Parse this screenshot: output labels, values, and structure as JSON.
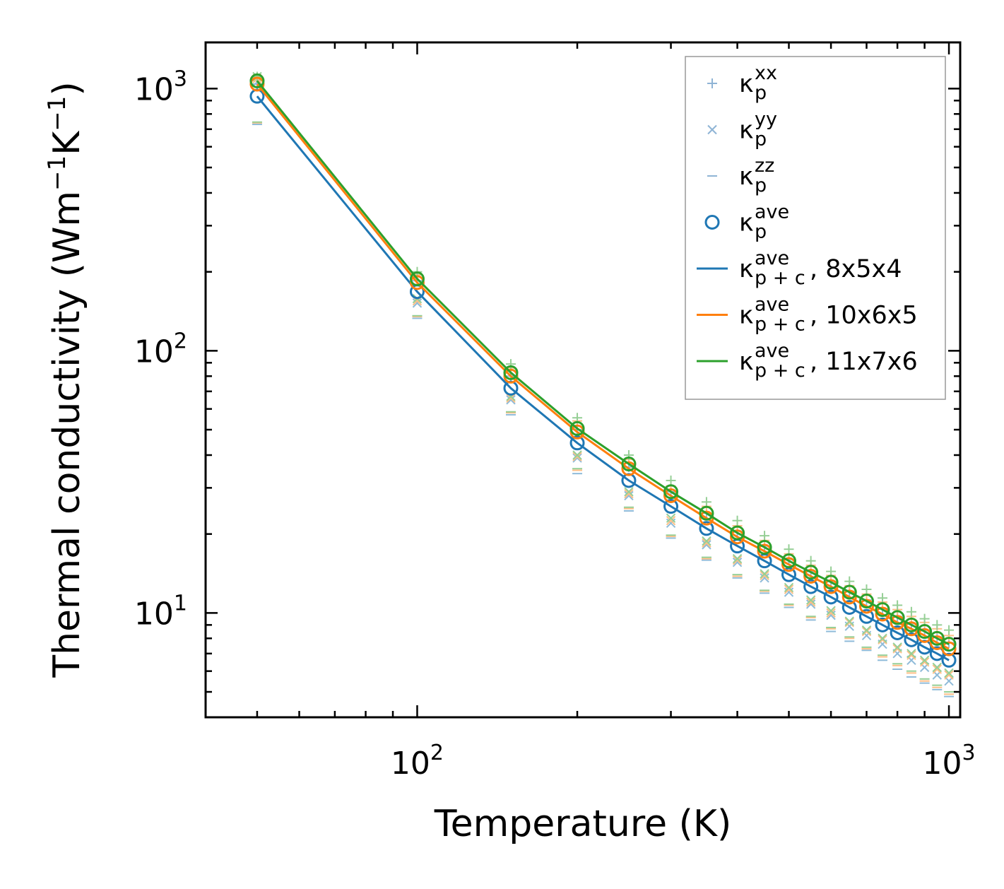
{
  "chart_data": {
    "type": "line",
    "scale": {
      "x": "log",
      "y": "log"
    },
    "xlim": [
      40,
      1050
    ],
    "ylim": [
      4,
      1500
    ],
    "xlabel": "Temperature (K)",
    "ylabel_text": "Thermal conductivity (Wm",
    "ylabel_exp1": "−1",
    "ylabel_mid": "K",
    "ylabel_exp2": "−1",
    "ylabel_close": ")",
    "x_ticks": [
      {
        "value": 100,
        "base": "10",
        "exp": "2"
      },
      {
        "value": 1000,
        "base": "10",
        "exp": "3"
      }
    ],
    "y_ticks": [
      {
        "value": 10,
        "base": "10",
        "exp": "1"
      },
      {
        "value": 100,
        "base": "10",
        "exp": "2"
      },
      {
        "value": 1000,
        "base": "10",
        "exp": "3"
      }
    ],
    "x": [
      50,
      100,
      150,
      200,
      250,
      300,
      350,
      400,
      450,
      500,
      550,
      600,
      650,
      700,
      750,
      800,
      850,
      900,
      950,
      1000
    ],
    "legend": [
      {
        "kind": "plus",
        "name": "κ",
        "sub": "p",
        "sup": "xx",
        "color": "#8fb4d5"
      },
      {
        "kind": "cross",
        "name": "κ",
        "sub": "p",
        "sup": "yy",
        "color": "#8fb4d5"
      },
      {
        "kind": "dash",
        "name": "κ",
        "sub": "p",
        "sup": "zz",
        "color": "#8fb4d5"
      },
      {
        "kind": "circle",
        "name": "κ",
        "sub": "p",
        "sup": "ave",
        "color": "#1f77b4"
      },
      {
        "kind": "line",
        "name": "κ",
        "sub": "p + c",
        "sup": "ave",
        "suffix": ", 8x5x4",
        "color": "#1f77b4"
      },
      {
        "kind": "line",
        "name": "κ",
        "sub": "p + c",
        "sup": "ave",
        "suffix": ", 10x6x5",
        "color": "#ff7f0e"
      },
      {
        "kind": "line",
        "name": "κ",
        "sub": "p + c",
        "sup": "ave",
        "suffix": ", 11x7x6",
        "color": "#2ca02c"
      }
    ],
    "series": [
      {
        "name": "κp+c ave, 8x5x4",
        "color": "#1f77b4",
        "light_color": "#8fbbd9",
        "line": [
          935,
          168,
          72,
          44.5,
          32,
          25.5,
          21,
          18,
          15.8,
          14,
          12.6,
          11.5,
          10.5,
          9.7,
          9.0,
          8.4,
          7.9,
          7.4,
          7.0,
          6.6
        ],
        "ave": [
          935,
          168,
          72,
          44.5,
          32,
          25.5,
          21,
          18,
          15.8,
          14,
          12.6,
          11.5,
          10.5,
          9.7,
          9.0,
          8.4,
          7.9,
          7.4,
          7.0,
          6.6
        ],
        "xx": [
          1040,
          185,
          80,
          50,
          36,
          29,
          24,
          20.5,
          18,
          16,
          14.4,
          13.2,
          12.1,
          11.2,
          10.4,
          9.7,
          9.1,
          8.6,
          8.1,
          7.7
        ],
        "yy": [
          1060,
          152,
          65,
          39,
          28,
          22,
          18.2,
          15.6,
          13.6,
          12,
          10.8,
          9.8,
          8.9,
          8.2,
          7.6,
          7.0,
          6.6,
          6.2,
          5.8,
          5.5
        ],
        "zz": [
          730,
          133,
          57,
          34,
          24.5,
          19.3,
          15.9,
          13.6,
          11.9,
          10.5,
          9.4,
          8.5,
          7.8,
          7.2,
          6.6,
          6.1,
          5.7,
          5.4,
          5.1,
          4.8
        ]
      },
      {
        "name": "κp+c ave, 10x6x5",
        "color": "#ff7f0e",
        "light_color": "#ffbf86",
        "line": [
          1040,
          182,
          80,
          49,
          35.5,
          28,
          23,
          19.5,
          17.2,
          15.3,
          13.8,
          12.6,
          11.5,
          10.6,
          9.9,
          9.2,
          8.7,
          8.2,
          7.7,
          7.3
        ],
        "ave": [
          1040,
          182,
          80,
          49,
          35.5,
          28,
          23,
          19.5,
          17.2,
          15.3,
          13.8,
          12.6,
          11.5,
          10.6,
          9.9,
          9.2,
          8.7,
          8.2,
          7.7,
          7.3
        ],
        "xx": [
          1100,
          195,
          86,
          54,
          38.5,
          30.5,
          25.5,
          21.5,
          18.9,
          16.8,
          15.2,
          13.9,
          12.7,
          11.8,
          11.0,
          10.3,
          9.7,
          9.2,
          8.7,
          8.2
        ],
        "yy": [
          1090,
          155,
          66,
          39.5,
          28.5,
          22.5,
          18.5,
          15.9,
          13.9,
          12.3,
          11.0,
          10.0,
          9.2,
          8.5,
          7.9,
          7.3,
          6.9,
          6.5,
          6.1,
          5.8
        ],
        "zz": [
          740,
          135,
          58,
          35,
          25,
          19.6,
          16.1,
          13.8,
          12.1,
          10.7,
          9.6,
          8.7,
          8.0,
          7.3,
          6.8,
          6.3,
          5.9,
          5.5,
          5.2,
          4.9
        ]
      },
      {
        "name": "κp+c ave, 11x7x6",
        "color": "#2ca02c",
        "light_color": "#96cf96",
        "line": [
          1070,
          188,
          82.5,
          50.5,
          37,
          29,
          24,
          20.2,
          17.8,
          15.8,
          14.3,
          13.1,
          12.0,
          11.1,
          10.3,
          9.6,
          9.0,
          8.5,
          8.0,
          7.6
        ],
        "ave": [
          1070,
          188,
          82.5,
          50.5,
          37,
          29,
          24,
          20.2,
          17.8,
          15.8,
          14.3,
          13.1,
          12.0,
          11.1,
          10.3,
          9.6,
          9.0,
          8.5,
          8.0,
          7.6
        ],
        "xx": [
          1110,
          200,
          89,
          55.5,
          40,
          32,
          26.5,
          22.5,
          19.7,
          17.5,
          15.8,
          14.4,
          13.2,
          12.3,
          11.4,
          10.7,
          10.1,
          9.5,
          9.0,
          8.6
        ],
        "yy": [
          1110,
          158,
          67,
          40,
          29,
          23,
          18.8,
          16.1,
          14.1,
          12.5,
          11.2,
          10.2,
          9.3,
          8.6,
          8.0,
          7.4,
          7.0,
          6.6,
          6.2,
          5.9
        ],
        "zz": [
          745,
          136,
          58.5,
          35.5,
          25.3,
          19.8,
          16.3,
          14.0,
          12.2,
          10.8,
          9.7,
          8.8,
          8.1,
          7.4,
          6.9,
          6.4,
          6.0,
          5.6,
          5.3,
          5.0
        ]
      }
    ]
  }
}
